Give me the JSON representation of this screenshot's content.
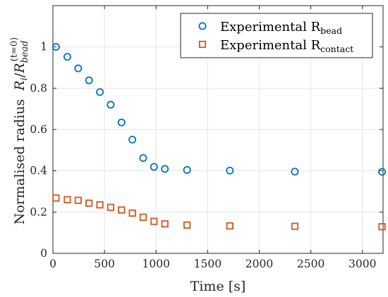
{
  "chart_data": {
    "type": "scatter",
    "xlabel": "Time [s]",
    "ylabel_prefix": "Normalised radius",
    "ylabel_math": {
      "r": "R",
      "i": "i",
      "slash": "/",
      "r2": "R",
      "bead": "bead",
      "t0": "(t=0)"
    },
    "xlim": [
      0,
      3200
    ],
    "ylim": [
      0,
      1.2
    ],
    "xticks": [
      0,
      500,
      1000,
      1500,
      2000,
      2500,
      3000
    ],
    "yticks": [
      0,
      0.2,
      0.4,
      0.6,
      0.8,
      1
    ],
    "xtick_labels": [
      "0",
      "500",
      "1000",
      "1500",
      "2000",
      "2500",
      "3000"
    ],
    "ytick_labels": [
      "0",
      "0.2",
      "0.4",
      "0.6",
      "0.8",
      "1"
    ],
    "grid": true,
    "legend_position": "top-right",
    "series": [
      {
        "name_main": "Experimental R",
        "name_sub": "bead",
        "marker": "circle",
        "color": "#0072BD",
        "x": [
          30,
          140,
          245,
          350,
          455,
          560,
          665,
          770,
          875,
          980,
          1085,
          1300,
          1715,
          2345,
          3190
        ],
        "y": [
          1.0,
          0.952,
          0.896,
          0.838,
          0.781,
          0.72,
          0.634,
          0.551,
          0.462,
          0.419,
          0.409,
          0.404,
          0.401,
          0.396,
          0.395
        ]
      },
      {
        "name_main": "Experimental R",
        "name_sub": "contact",
        "marker": "square",
        "color": "#D95319",
        "x": [
          30,
          140,
          245,
          350,
          455,
          560,
          665,
          770,
          875,
          980,
          1085,
          1300,
          1715,
          2345,
          3190
        ],
        "y": [
          0.268,
          0.26,
          0.257,
          0.243,
          0.235,
          0.223,
          0.21,
          0.195,
          0.175,
          0.155,
          0.143,
          0.137,
          0.133,
          0.131,
          0.129
        ]
      }
    ]
  }
}
